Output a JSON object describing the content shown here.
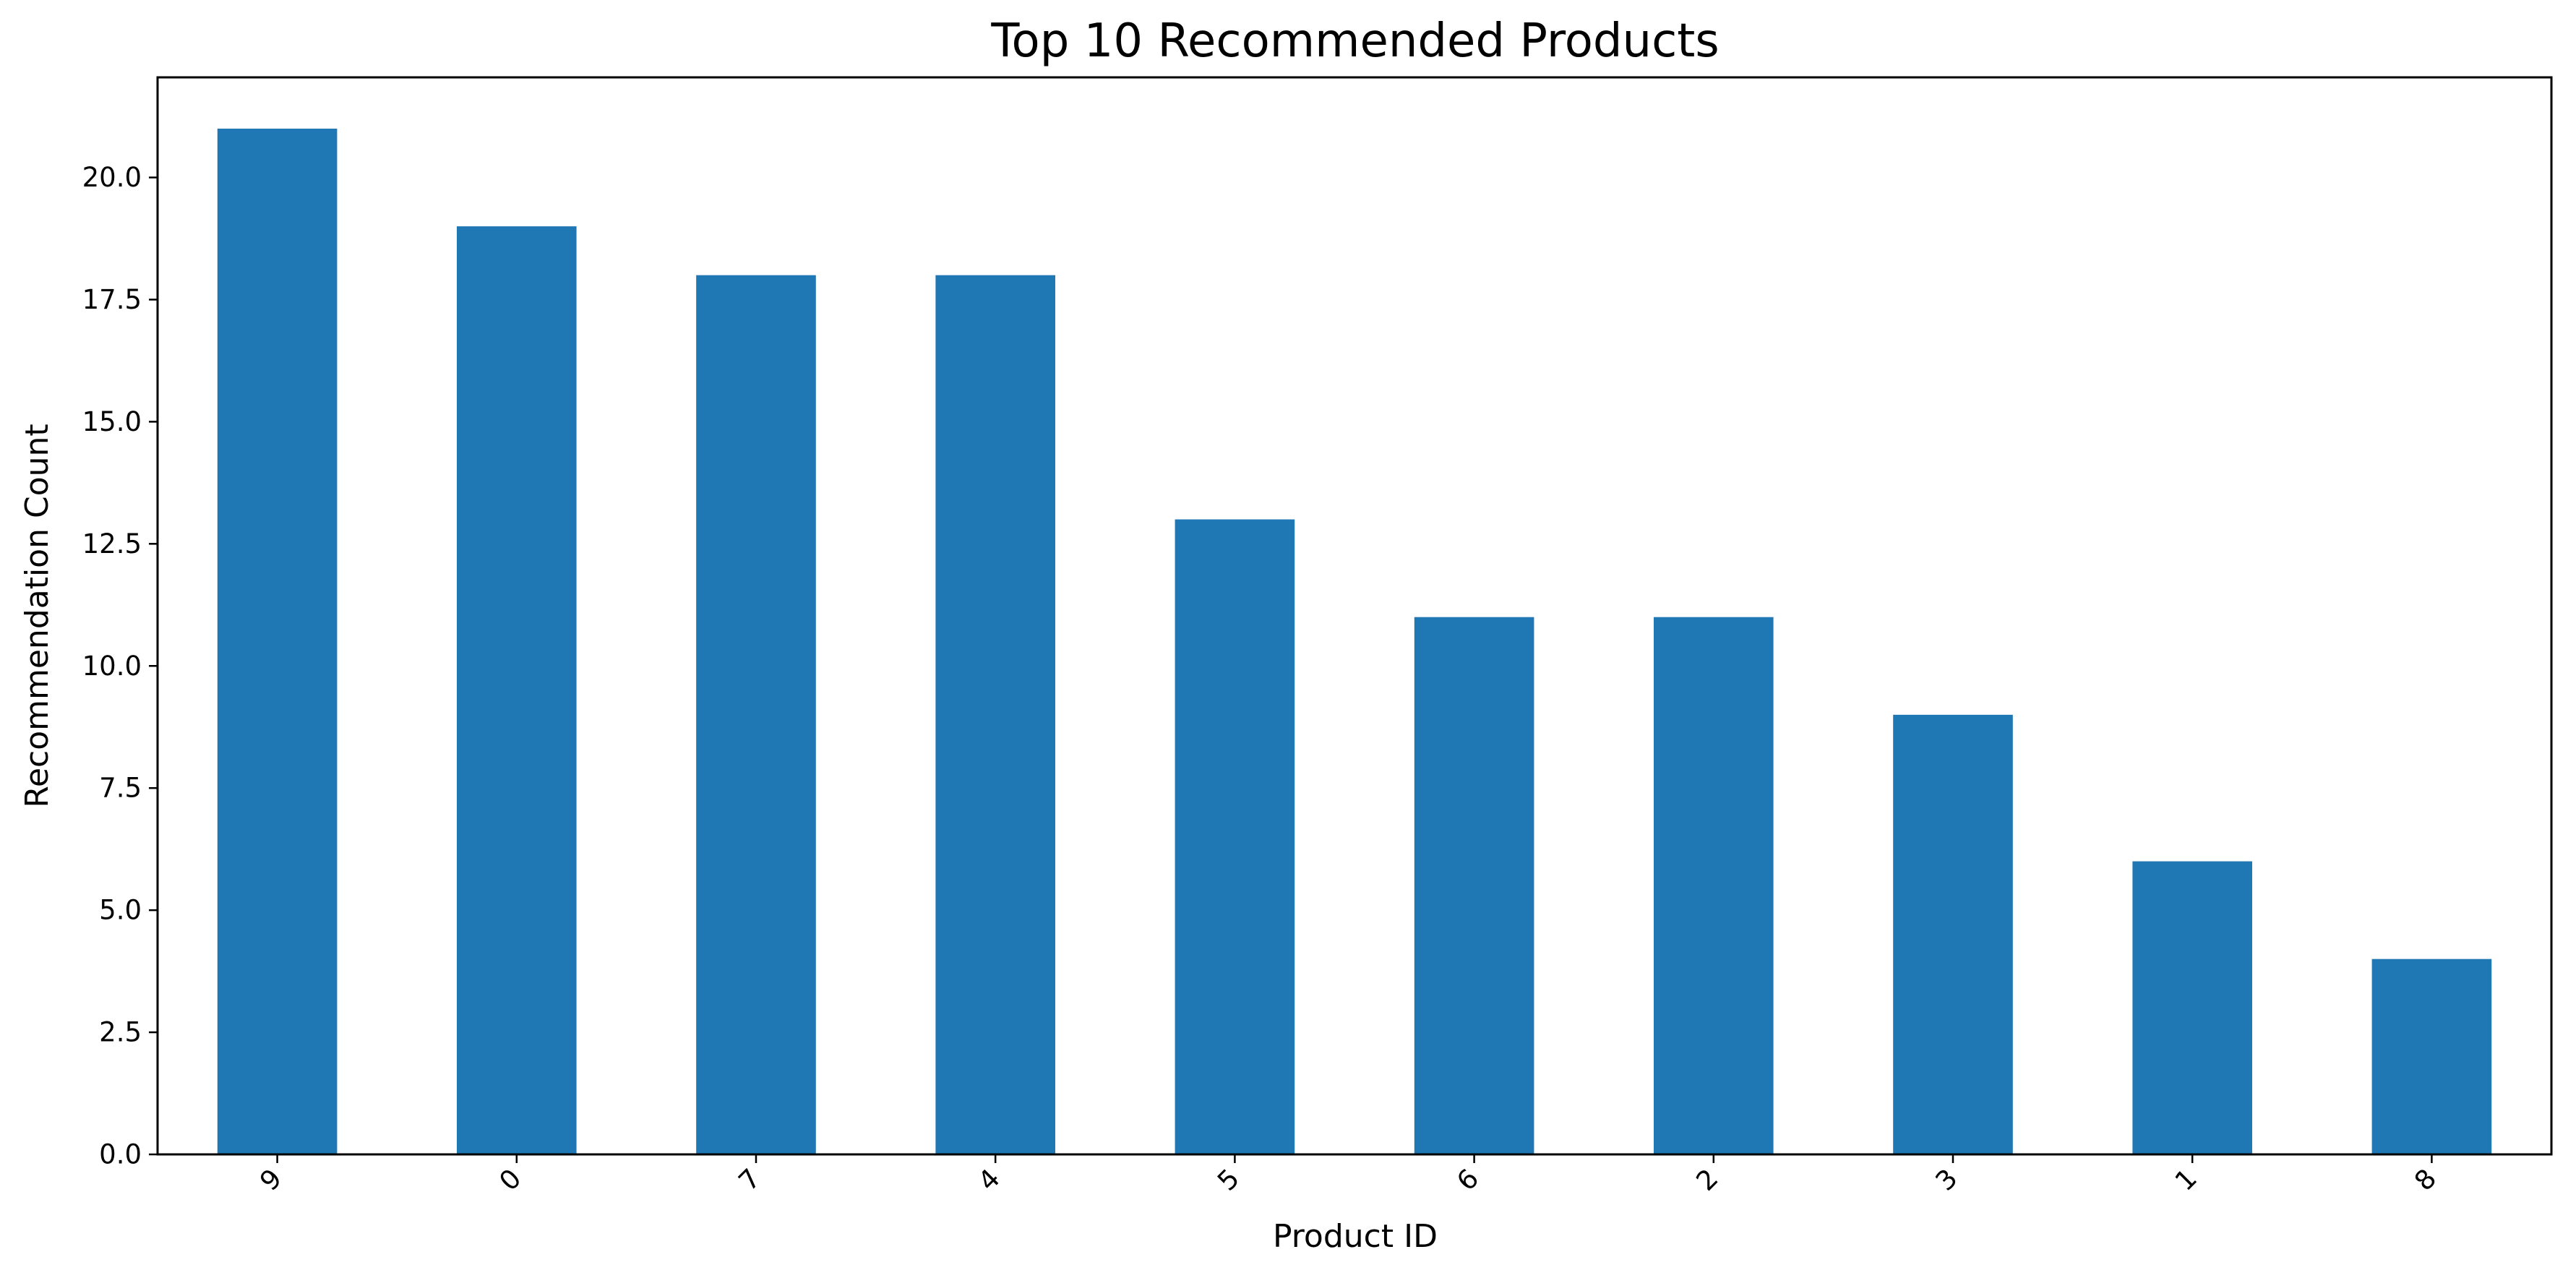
{
  "chart_data": {
    "type": "bar",
    "title": "Top 10 Recommended Products",
    "xlabel": "Product ID",
    "ylabel": "Recommendation Count",
    "categories": [
      "9",
      "0",
      "7",
      "4",
      "5",
      "6",
      "2",
      "3",
      "1",
      "8"
    ],
    "values": [
      21,
      19,
      18,
      18,
      13,
      11,
      11,
      9,
      6,
      4
    ],
    "ylim": [
      0,
      22.05
    ],
    "yticks": [
      "0.0",
      "2.5",
      "5.0",
      "7.5",
      "10.0",
      "12.5",
      "15.0",
      "17.5",
      "20.0"
    ],
    "grid": false,
    "legend": "none",
    "bar_color": "#1f77b4",
    "xtick_rotation_deg": 45
  }
}
